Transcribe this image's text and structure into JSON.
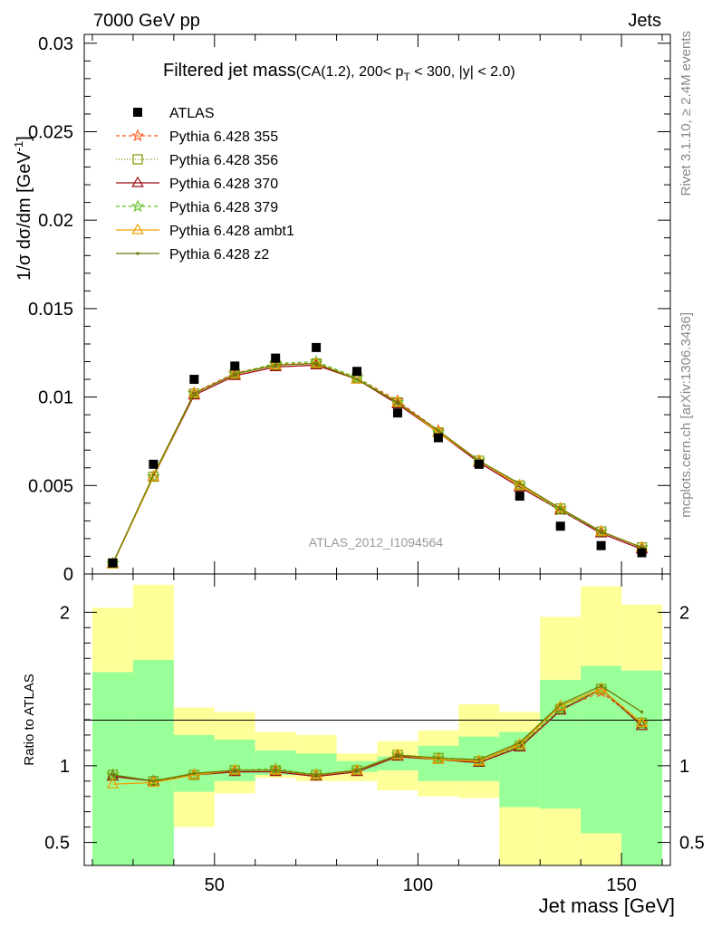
{
  "header": {
    "left": "7000 GeV pp",
    "right": "Jets"
  },
  "side_labels": {
    "rivet": "Rivet 3.1.10, ≥ 2.4M events",
    "mcplots": "mcplots.cern.ch [arXiv:1306.3436]"
  },
  "chart_data": [
    {
      "type": "line",
      "title_main": "Filtered jet mass",
      "title_cut": "(CA(1.2), 200< p",
      "title_sub": "T",
      "title_rest": " < 300, |y| < 2.0)",
      "ylabel": "1/σ dσ/dm [GeV",
      "ylabel_sup": "-1",
      "ylabel_close": "]",
      "watermark": "ATLAS_2012_I1094564",
      "xlim": [
        18,
        162
      ],
      "ylim": [
        0,
        0.0305
      ],
      "yticks": [
        {
          "v": 0,
          "label": "0"
        },
        {
          "v": 0.005,
          "label": "0.005"
        },
        {
          "v": 0.01,
          "label": "0.01"
        },
        {
          "v": 0.015,
          "label": "0.015"
        },
        {
          "v": 0.02,
          "label": "0.02"
        },
        {
          "v": 0.025,
          "label": "0.025"
        },
        {
          "v": 0.03,
          "label": "0.03"
        }
      ],
      "x": [
        25,
        35,
        45,
        55,
        65,
        75,
        85,
        95,
        105,
        115,
        125,
        135,
        145,
        155
      ],
      "data": {
        "name": "ATLAS",
        "values": [
          0.00062,
          0.0062,
          0.011,
          0.01175,
          0.0122,
          0.0128,
          0.01145,
          0.0091,
          0.0077,
          0.0062,
          0.0044,
          0.0027,
          0.0016,
          0.0012
        ]
      },
      "series": [
        {
          "name": "Pythia 6.428 355",
          "color": "#ff5a1f",
          "dash": "4,3",
          "marker": "star",
          "values": [
            0.00059,
            0.0055,
            0.01025,
            0.01135,
            0.01185,
            0.0119,
            0.0111,
            0.0098,
            0.0081,
            0.0064,
            0.005,
            0.0037,
            0.0024,
            0.0015
          ]
        },
        {
          "name": "Pythia 6.428 356",
          "color": "#7a9a00",
          "dash": "1,2",
          "marker": "square",
          "values": [
            0.00059,
            0.0055,
            0.0102,
            0.0113,
            0.0118,
            0.0119,
            0.0111,
            0.0097,
            0.008,
            0.0064,
            0.005,
            0.0037,
            0.0024,
            0.0015
          ]
        },
        {
          "name": "Pythia 6.428 370",
          "color": "#9c0a14",
          "dash": "",
          "marker": "triangle",
          "values": [
            0.00058,
            0.0055,
            0.0101,
            0.0112,
            0.0117,
            0.0118,
            0.011,
            0.0096,
            0.008,
            0.0063,
            0.0049,
            0.0036,
            0.0023,
            0.0014
          ]
        },
        {
          "name": "Pythia 6.428 379",
          "color": "#5fbf1f",
          "dash": "4,3",
          "marker": "star",
          "values": [
            0.00059,
            0.0055,
            0.0102,
            0.0113,
            0.0119,
            0.012,
            0.0111,
            0.0097,
            0.008,
            0.0064,
            0.005,
            0.0036,
            0.0024,
            0.0015
          ]
        },
        {
          "name": "Pythia 6.428 ambt1",
          "color": "#f0a000",
          "dash": "",
          "marker": "triangle",
          "values": [
            0.00055,
            0.0055,
            0.0102,
            0.0113,
            0.0118,
            0.0119,
            0.011,
            0.0097,
            0.008,
            0.0064,
            0.005,
            0.0037,
            0.0024,
            0.0015
          ]
        },
        {
          "name": "Pythia 6.428 z2",
          "color": "#6b7a00",
          "dash": "",
          "marker": "dot",
          "values": [
            0.00059,
            0.0056,
            0.0102,
            0.0113,
            0.0118,
            0.0119,
            0.011,
            0.0097,
            0.0081,
            0.0064,
            0.0051,
            0.0037,
            0.0024,
            0.0015
          ]
        }
      ]
    },
    {
      "type": "line",
      "ylabel": "Ratio to ATLAS",
      "xlabel": "Jet mass [GeV]",
      "ylim": [
        0.35,
        2.25
      ],
      "xticks": [
        {
          "v": 50,
          "label": "50"
        },
        {
          "v": 100,
          "label": "100"
        },
        {
          "v": 150,
          "label": "150"
        }
      ],
      "yticks": [
        {
          "v": 0.5,
          "label": "0.5"
        },
        {
          "v": 1,
          "label": "1"
        },
        {
          "v": 2,
          "label": "2"
        }
      ],
      "bins": [
        [
          20,
          30
        ],
        [
          30,
          40
        ],
        [
          40,
          50
        ],
        [
          50,
          60
        ],
        [
          60,
          70
        ],
        [
          70,
          80
        ],
        [
          80,
          90
        ],
        [
          90,
          100
        ],
        [
          100,
          110
        ],
        [
          110,
          120
        ],
        [
          120,
          130
        ],
        [
          130,
          140
        ],
        [
          140,
          150
        ],
        [
          150,
          160
        ]
      ],
      "band_yellow": [
        [
          0.35,
          2.03
        ],
        [
          0.58,
          2.18
        ],
        [
          0.6,
          1.38
        ],
        [
          0.82,
          1.35
        ],
        [
          0.92,
          1.22
        ],
        [
          0.9,
          1.2
        ],
        [
          0.9,
          1.08
        ],
        [
          0.84,
          1.16
        ],
        [
          0.8,
          1.23
        ],
        [
          0.79,
          1.4
        ],
        [
          0.35,
          1.35
        ],
        [
          0.35,
          1.97
        ],
        [
          0.35,
          2.17
        ],
        [
          0.35,
          2.05
        ]
      ],
      "band_green": [
        [
          0.35,
          1.61
        ],
        [
          0.35,
          1.69
        ],
        [
          0.83,
          1.2
        ],
        [
          0.9,
          1.17
        ],
        [
          0.94,
          1.1
        ],
        [
          0.95,
          1.08
        ],
        [
          0.96,
          1.03
        ],
        [
          0.97,
          1.06
        ],
        [
          0.9,
          1.13
        ],
        [
          0.9,
          1.19
        ],
        [
          0.73,
          1.22
        ],
        [
          0.72,
          1.56
        ],
        [
          0.56,
          1.65
        ],
        [
          0.35,
          1.62
        ]
      ],
      "series": [
        {
          "name": "Pythia 6.428 355",
          "color": "#ff5a1f",
          "dash": "4,3",
          "marker": "star",
          "values": [
            0.94,
            0.9,
            0.94,
            0.97,
            0.97,
            0.94,
            0.97,
            1.07,
            1.05,
            1.03,
            1.13,
            1.37,
            1.48,
            1.28
          ]
        },
        {
          "name": "Pythia 6.428 356",
          "color": "#7a9a00",
          "dash": "1,2",
          "marker": "square",
          "values": [
            0.94,
            0.9,
            0.94,
            0.97,
            0.97,
            0.94,
            0.97,
            1.07,
            1.05,
            1.03,
            1.13,
            1.37,
            1.5,
            1.28
          ]
        },
        {
          "name": "Pythia 6.428 370",
          "color": "#9c0a14",
          "dash": "",
          "marker": "triangle",
          "values": [
            0.93,
            0.9,
            0.94,
            0.96,
            0.96,
            0.93,
            0.96,
            1.06,
            1.04,
            1.02,
            1.12,
            1.36,
            1.5,
            1.26
          ]
        },
        {
          "name": "Pythia 6.428 379",
          "color": "#5fbf1f",
          "dash": "4,3",
          "marker": "star",
          "values": [
            0.94,
            0.9,
            0.94,
            0.97,
            0.98,
            0.94,
            0.97,
            1.07,
            1.05,
            1.03,
            1.13,
            1.37,
            1.5,
            1.27
          ]
        },
        {
          "name": "Pythia 6.428 ambt1",
          "color": "#f0a000",
          "dash": "",
          "marker": "triangle",
          "values": [
            0.88,
            0.89,
            0.94,
            0.97,
            0.97,
            0.94,
            0.97,
            1.07,
            1.04,
            1.03,
            1.14,
            1.39,
            1.5,
            1.28
          ]
        },
        {
          "name": "Pythia 6.428 z2",
          "color": "#6b7a00",
          "dash": "",
          "marker": "dot",
          "values": [
            0.94,
            0.9,
            0.95,
            0.97,
            0.97,
            0.94,
            0.97,
            1.07,
            1.05,
            1.04,
            1.15,
            1.4,
            1.52,
            1.35
          ]
        }
      ]
    }
  ]
}
